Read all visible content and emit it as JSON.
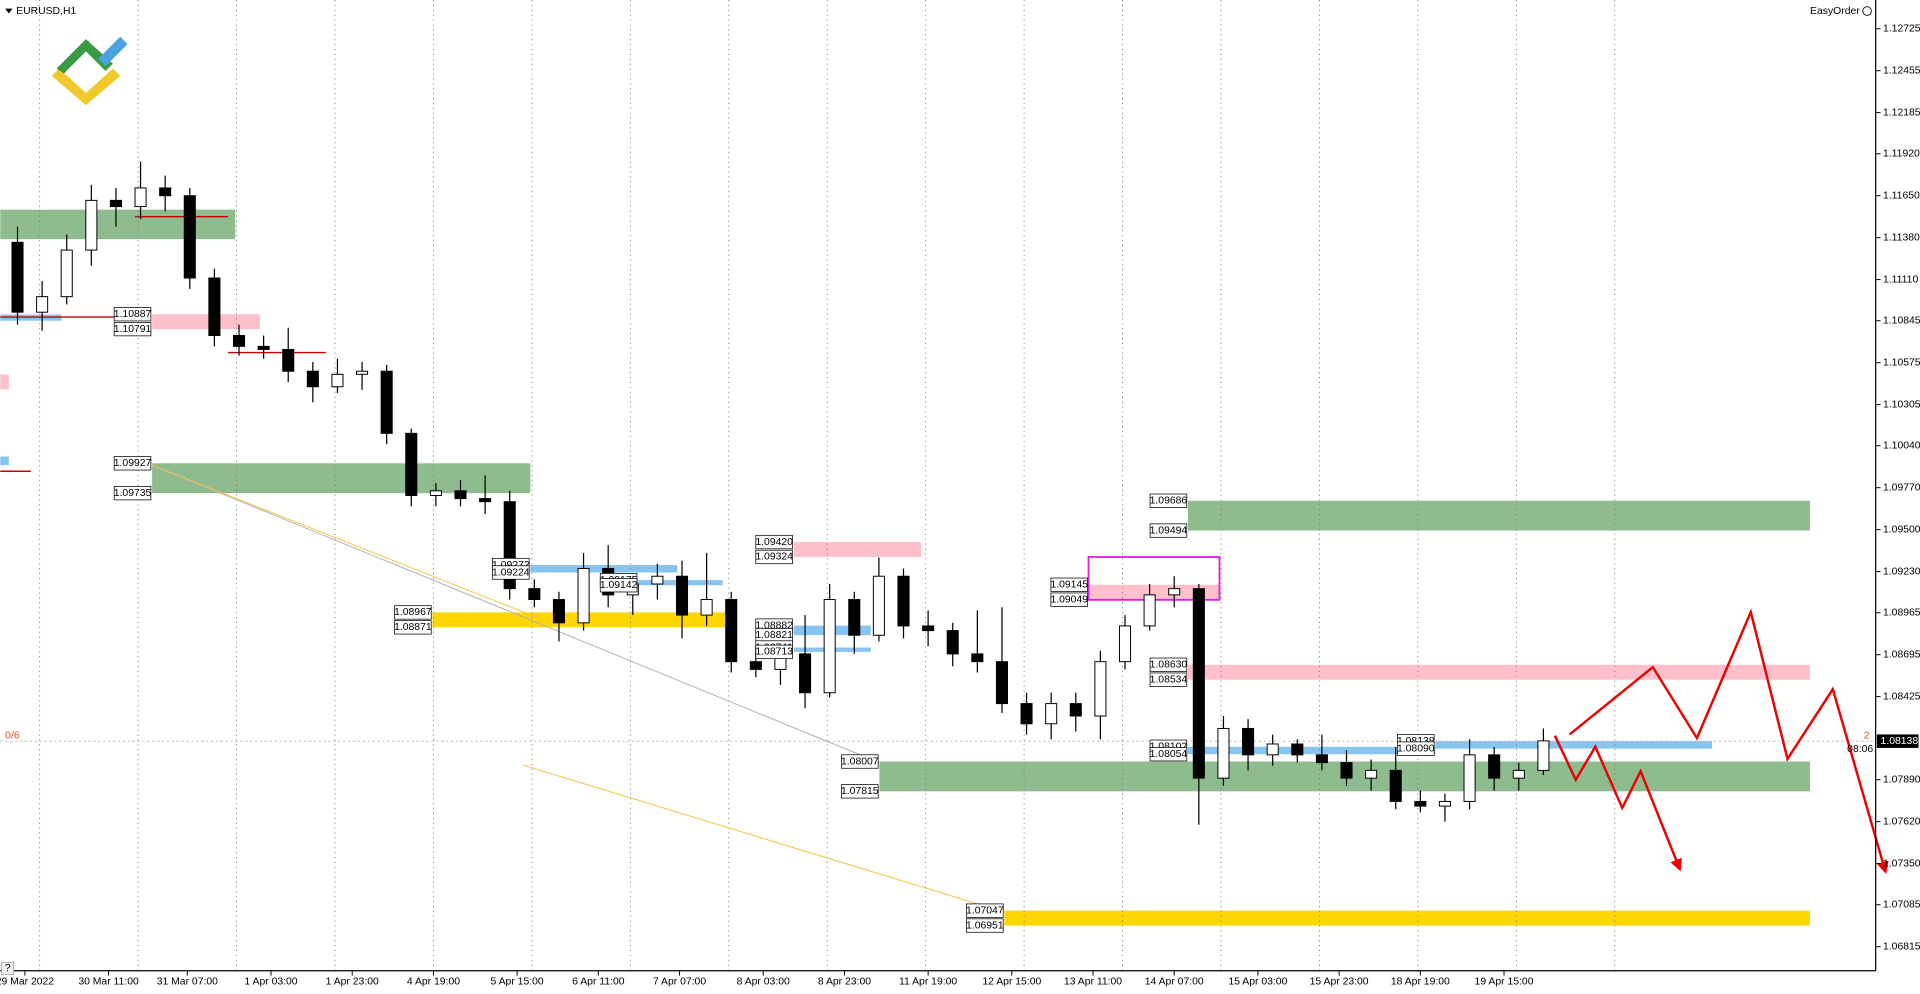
{
  "chart_data": {
    "type": "candlestick",
    "title": "EURUSD,H1",
    "panel_label": "EasyOrder",
    "help": "?",
    "counter": "0/6",
    "right_marker": "2",
    "timer": "08:06",
    "bid": 1.08138,
    "up_color": "#ffffff",
    "down_color": "#000000",
    "xlim": [
      -0.2,
      76
    ],
    "ylim": [
      1.0666,
      1.1291
    ],
    "yticks": [
      1.12725,
      1.12455,
      1.12185,
      {
        "value": 1.1192,
        "label": "1.11920"
      },
      {
        "value": 1.1165,
        "label": "1.11650"
      },
      {
        "value": 1.1138,
        "label": "1.11380"
      },
      {
        "value": 1.1111,
        "label": "1.11110"
      },
      1.10845,
      1.10575,
      1.10305,
      {
        "value": 1.1004,
        "label": "1.10040"
      },
      {
        "value": 1.0977,
        "label": "1.09770"
      },
      {
        "value": 1.095,
        "label": "1.09500"
      },
      {
        "value": 1.0923,
        "label": "1.09230"
      },
      1.08965,
      1.08695,
      1.08425,
      {
        "value": 1.0789,
        "label": "1.07890"
      },
      {
        "value": 1.0762,
        "label": "1.07620"
      },
      {
        "value": 1.0735,
        "label": "1.07350"
      },
      1.07085,
      1.06815
    ],
    "xticks": [
      {
        "value": 0.8,
        "label": "29 Mar 2022"
      },
      {
        "value": 4.2,
        "label": "30 Mar 11:00"
      },
      {
        "value": 7.4,
        "label": "31 Mar 07:00"
      },
      {
        "value": 10.8,
        "label": "1 Apr 03:00"
      },
      {
        "value": 14.1,
        "label": "1 Apr 23:00"
      },
      {
        "value": 17.4,
        "label": "4 Apr 19:00"
      },
      {
        "value": 20.8,
        "label": "5 Apr 15:00"
      },
      {
        "value": 24.1,
        "label": "6 Apr 11:00"
      },
      {
        "value": 27.4,
        "label": "7 Apr 07:00"
      },
      {
        "value": 30.8,
        "label": "8 Apr 03:00"
      },
      {
        "value": 34.1,
        "label": "8 Apr 23:00"
      },
      {
        "value": 37.5,
        "label": "11 Apr 19:00"
      },
      {
        "value": 40.9,
        "label": "12 Apr 15:00"
      },
      {
        "value": 44.2,
        "label": "13 Apr 11:00"
      },
      {
        "value": 47.5,
        "label": "14 Apr 07:00"
      },
      {
        "value": 50.9,
        "label": "15 Apr 03:00"
      },
      {
        "value": 54.2,
        "label": "15 Apr 23:00"
      },
      {
        "value": 57.5,
        "label": "18 Apr 19:00"
      },
      {
        "value": 60.9,
        "label": "19 Apr 15:00"
      }
    ],
    "separators": [
      1.4,
      5.4,
      9.4,
      13.4,
      17.4,
      21.4,
      25.4,
      29.4,
      33.4,
      37.4,
      41.4,
      45.4,
      49.4,
      53.4,
      57.4,
      61.4,
      65.4
    ],
    "open": [
      1.1135,
      1.109,
      1.11,
      1.113,
      1.1162,
      1.1158,
      1.117,
      1.1165,
      1.1112,
      1.1075,
      1.1068,
      1.1066,
      1.1052,
      1.1042,
      1.105,
      1.1052,
      1.1012,
      1.0972,
      1.0975,
      1.097,
      1.0968,
      1.0912,
      1.0905,
      1.089,
      1.0925,
      1.0908,
      1.0915,
      1.092,
      1.0895,
      1.0905,
      1.0865,
      1.086,
      1.087,
      1.0845,
      1.0905,
      1.0882,
      1.092,
      1.0888,
      1.0885,
      1.087,
      1.0865,
      1.0838,
      1.0825,
      1.0838,
      1.083,
      1.0865,
      1.0888,
      1.0908,
      1.0912,
      1.079,
      1.0822,
      1.0805,
      1.0812,
      1.0805,
      1.08,
      1.079,
      1.0795,
      1.0775,
      1.0772,
      1.0775,
      1.0805,
      1.079,
      1.0795
    ],
    "high": [
      1.1145,
      1.111,
      1.114,
      1.1172,
      1.117,
      1.1187,
      1.1178,
      1.117,
      1.1118,
      1.1082,
      1.1075,
      1.108,
      1.1058,
      1.106,
      1.1058,
      1.1056,
      1.1015,
      1.098,
      1.0982,
      1.0985,
      1.0975,
      1.0918,
      1.091,
      1.0935,
      1.094,
      1.092,
      1.0928,
      1.093,
      1.0935,
      1.091,
      1.0875,
      1.088,
      1.0895,
      1.0915,
      1.091,
      1.0932,
      1.0925,
      1.0898,
      1.089,
      1.0898,
      1.09,
      1.0845,
      1.0845,
      1.0845,
      1.0872,
      1.0895,
      1.0915,
      1.092,
      1.0915,
      1.083,
      1.0828,
      1.0818,
      1.0815,
      1.0818,
      1.0808,
      1.0802,
      1.081,
      1.0782,
      1.078,
      1.0815,
      1.081,
      1.08,
      1.0822
    ],
    "low": [
      1.1082,
      1.1078,
      1.1095,
      1.112,
      1.1145,
      1.115,
      1.1155,
      1.1105,
      1.1068,
      1.1062,
      1.106,
      1.1045,
      1.1032,
      1.1038,
      1.104,
      1.1005,
      1.0965,
      1.0965,
      1.0965,
      1.096,
      1.0905,
      1.09,
      1.0878,
      1.0885,
      1.09,
      1.0895,
      1.0905,
      1.088,
      1.0888,
      1.0858,
      1.0855,
      1.085,
      1.0835,
      1.0842,
      1.087,
      1.0878,
      1.088,
      1.0875,
      1.0862,
      1.0858,
      1.0832,
      1.0818,
      1.0815,
      1.082,
      1.0815,
      1.086,
      1.0885,
      1.09,
      1.076,
      1.0785,
      1.0795,
      1.0798,
      1.08,
      1.0795,
      1.0785,
      1.0782,
      1.077,
      1.0768,
      1.0762,
      1.077,
      1.0782,
      1.0782,
      1.0792
    ],
    "close": [
      1.109,
      1.11,
      1.113,
      1.1162,
      1.1158,
      1.117,
      1.1165,
      1.1112,
      1.1075,
      1.1068,
      1.1066,
      1.1052,
      1.1042,
      1.105,
      1.1052,
      1.1012,
      1.0972,
      1.0975,
      1.097,
      1.0968,
      1.0912,
      1.0905,
      1.089,
      1.0925,
      1.0908,
      1.0915,
      1.092,
      1.0895,
      1.0905,
      1.0865,
      1.086,
      1.087,
      1.0845,
      1.0905,
      1.0882,
      1.092,
      1.0888,
      1.0885,
      1.087,
      1.0865,
      1.0838,
      1.0825,
      1.0838,
      1.083,
      1.0865,
      1.0888,
      1.0908,
      1.0912,
      1.079,
      1.0822,
      1.0805,
      1.0812,
      1.0805,
      1.08,
      1.079,
      1.0795,
      1.0775,
      1.0772,
      1.0775,
      1.0805,
      1.079,
      1.0795,
      1.0814
    ],
    "zones": [
      {
        "x": [
          -0.2,
          9.35
        ],
        "top": 1.1156,
        "bottom": 1.1137,
        "color": "#8fbc8f",
        "labeled": false
      },
      {
        "x": [
          5.97,
          10.35
        ],
        "top": 1.10887,
        "bottom": 1.10791,
        "color": "#ffc0cb"
      },
      {
        "x": [
          5.97,
          21.34
        ],
        "top": 1.09927,
        "bottom": 1.09735,
        "color": "#8fbc8f"
      },
      {
        "x": [
          17.36,
          29.65
        ],
        "top": 1.08967,
        "bottom": 1.08871,
        "color": "#ffd700"
      },
      {
        "x": [
          21.34,
          27.31
        ],
        "top": 1.09272,
        "bottom": 1.09224,
        "color": "#87c4ef"
      },
      {
        "x": [
          25.72,
          29.15
        ],
        "top": 1.09175,
        "bottom": 1.09142,
        "color": "#87c4ef"
      },
      {
        "x": [
          32.04,
          37.21
        ],
        "top": 1.0942,
        "top_label": "1.09420",
        "bottom": 1.09324,
        "color": "#ffc0cb"
      },
      {
        "x": [
          32.04,
          35.17
        ],
        "top": 1.08882,
        "bottom": 1.08821,
        "color": "#87c4ef"
      },
      {
        "x": [
          32.04,
          35.17
        ],
        "top": 1.08741,
        "bottom": 1.08713,
        "color": "#87c4ef"
      },
      {
        "x": [
          44.03,
          49.35
        ],
        "top": 1.09145,
        "bottom": 1.09049,
        "color": "#ffc0cb"
      },
      {
        "x": [
          48.06,
          73.33
        ],
        "top": 1.09686,
        "bottom": 1.09494,
        "color": "#8fbc8f"
      },
      {
        "x": [
          48.06,
          73.33
        ],
        "top": 1.0863,
        "top_label": "1.08630",
        "bottom": 1.08534,
        "color": "#ffc0cb"
      },
      {
        "x": [
          48.06,
          58.11
        ],
        "top": 1.08102,
        "bottom": 1.08054,
        "color": "#87c4ef"
      },
      {
        "x": [
          58.11,
          69.35
        ],
        "top": 1.08138,
        "bottom": 1.0809,
        "bottom_label": "1.08090",
        "color": "#87c4ef"
      },
      {
        "x": [
          35.52,
          73.33
        ],
        "top": 1.08007,
        "bottom": 1.07815,
        "color": "#8fbc8f"
      },
      {
        "x": [
          40.6,
          73.33
        ],
        "top": 1.07047,
        "bottom": 1.06951,
        "color": "#ffd700"
      }
    ]
  }
}
